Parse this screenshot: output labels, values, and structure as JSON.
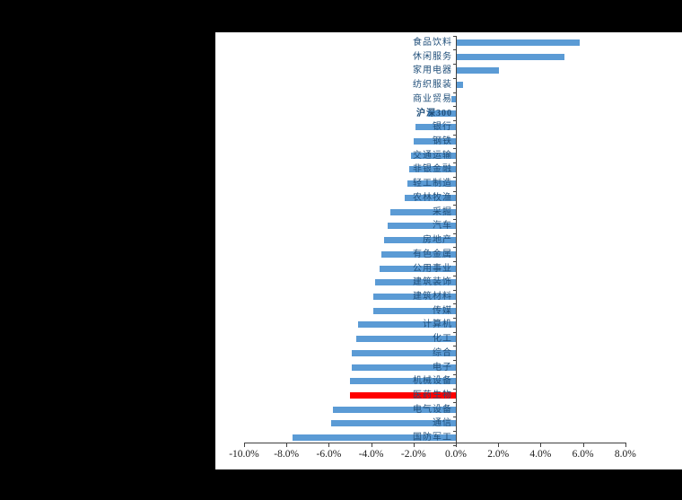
{
  "chart_data": {
    "type": "bar",
    "orientation": "horizontal",
    "title": "",
    "xlabel": "",
    "ylabel": "",
    "xlim": [
      -10.0,
      8.0
    ],
    "x_tick_labels": [
      "-10.0%",
      "-8.0%",
      "-6.0%",
      "-4.0%",
      "-2.0%",
      "0.0%",
      "2.0%",
      "4.0%",
      "6.0%",
      "8.0%"
    ],
    "x_tick_values": [
      -10,
      -8,
      -6,
      -4,
      -2,
      0,
      2,
      4,
      6,
      8
    ],
    "grid": "off",
    "legend": "none",
    "categories": [
      "食品饮料",
      "休闲服务",
      "家用电器",
      "纺织服装",
      "商业贸易",
      "沪深300",
      "银行",
      "钢铁",
      "交通运输",
      "非银金融",
      "轻工制造",
      "农林牧渔",
      "采掘",
      "汽车",
      "房地产",
      "有色金属",
      "公用事业",
      "建筑装饰",
      "建筑材料",
      "传媒",
      "计算机",
      "化工",
      "综合",
      "电子",
      "机械设备",
      "医药生物",
      "电气设备",
      "通信",
      "国防军工"
    ],
    "values": [
      5.8,
      5.1,
      2.0,
      0.3,
      -0.2,
      -1.3,
      -1.9,
      -2.0,
      -2.1,
      -2.2,
      -2.3,
      -2.4,
      -3.1,
      -3.2,
      -3.4,
      -3.5,
      -3.6,
      -3.8,
      -3.9,
      -3.9,
      -4.6,
      -4.7,
      -4.9,
      -4.9,
      -5.0,
      -5.0,
      -5.8,
      -5.9,
      -7.7
    ],
    "bar_color": "#5B9BD5",
    "highlight_category": "医药生物",
    "highlight_color": "#FF0000",
    "benchmark_category": "沪深300",
    "label_color": "#1F4E79",
    "axis_color": "#404040",
    "panel_background": "#FFFFFF",
    "page_background": "#000000"
  }
}
